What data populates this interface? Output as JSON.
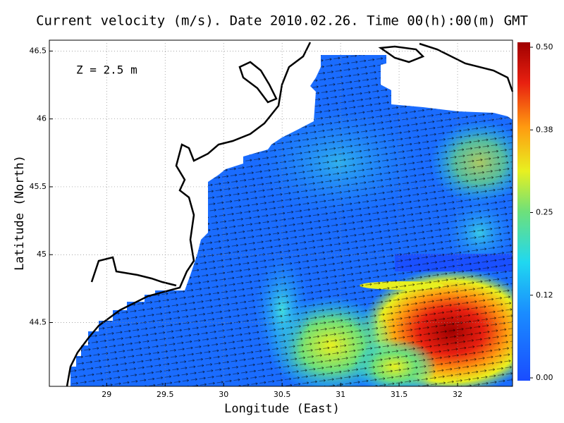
{
  "chart_data": {
    "type": "heatmap",
    "title": "Current velocity (m/s). Date 2010.02.26. Time 00(h):00(m) GMT",
    "annotation": "Z = 2.5 m",
    "x_label": "Longitude (East)",
    "y_label": "Latitude (North)",
    "xlim": [
      28.51,
      32.47
    ],
    "ylim": [
      44.03,
      46.58
    ],
    "xticks": [
      29,
      29.5,
      30,
      30.5,
      31,
      31.5,
      32
    ],
    "yticks": [
      44.5,
      45,
      45.5,
      46,
      46.5
    ],
    "grid": true,
    "clim": [
      0,
      0.5
    ],
    "cticks": [
      {
        "value": 0,
        "label": "0.00"
      },
      {
        "value": 0.125,
        "label": "0.12"
      },
      {
        "value": 0.25,
        "label": "0.25"
      },
      {
        "value": 0.375,
        "label": "0.38"
      },
      {
        "value": 0.5,
        "label": "0.50"
      }
    ]
  }
}
